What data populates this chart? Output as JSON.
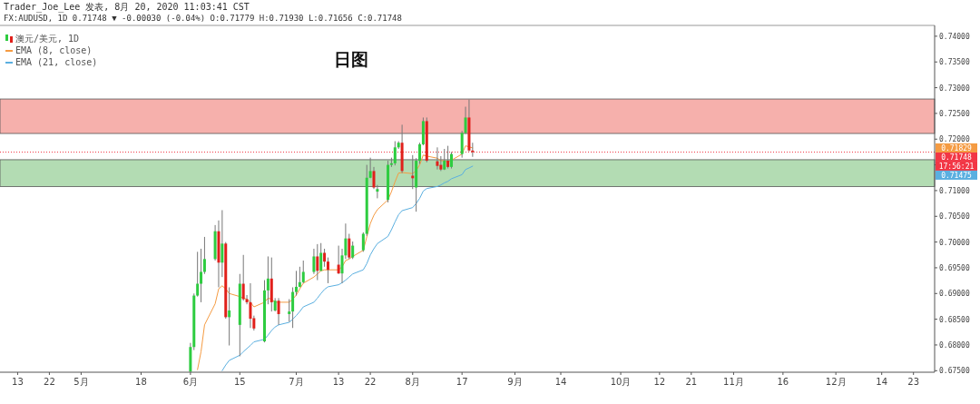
{
  "chart_data": {
    "type": "candlestick",
    "title": "日图",
    "annotations": [
      "Trader_Joe_Lee 发表, 8月 20, 2020 11:03:41 CST",
      "FX:AUDUSD, 1D 0.71748 ▼ -0.00030 (-0.04%) O:0.71779 H:0.71930 L:0.71656 C:0.71748",
      "17:56:21",
      "0.71829",
      "0.71475"
    ],
    "x": [
      "2020-06-01",
      "2020-06-02",
      "2020-06-03",
      "2020-06-04",
      "2020-06-05",
      "2020-06-08",
      "2020-06-09",
      "2020-06-10",
      "2020-06-11",
      "2020-06-12",
      "2020-06-15",
      "2020-06-16",
      "2020-06-17",
      "2020-06-18",
      "2020-06-19",
      "2020-06-22",
      "2020-06-23",
      "2020-06-24",
      "2020-06-25",
      "2020-06-26",
      "2020-06-29",
      "2020-06-30",
      "2020-07-01",
      "2020-07-02",
      "2020-07-03",
      "2020-07-06",
      "2020-07-07",
      "2020-07-08",
      "2020-07-09",
      "2020-07-10",
      "2020-07-13",
      "2020-07-14",
      "2020-07-15",
      "2020-07-16",
      "2020-07-17",
      "2020-07-20",
      "2020-07-21",
      "2020-07-22",
      "2020-07-23",
      "2020-07-24",
      "2020-07-27",
      "2020-07-28",
      "2020-07-29",
      "2020-07-30",
      "2020-07-31",
      "2020-08-03",
      "2020-08-04",
      "2020-08-05",
      "2020-08-06",
      "2020-08-07",
      "2020-08-10",
      "2020-08-11",
      "2020-08-12",
      "2020-08-13",
      "2020-08-14",
      "2020-08-17",
      "2020-08-18",
      "2020-08-19",
      "2020-08-20"
    ],
    "series": [
      {
        "name": "澳元/美元, 1D",
        "ohlc": [
          [
            0.6748,
            0.6804,
            0.6748,
            0.6796
          ],
          [
            0.6796,
            0.69,
            0.679,
            0.6896
          ],
          [
            0.6896,
            0.6981,
            0.6894,
            0.6919
          ],
          [
            0.6919,
            0.6987,
            0.6883,
            0.6942
          ],
          [
            0.6942,
            0.701,
            0.6938,
            0.6967
          ],
          [
            0.6967,
            0.7033,
            0.6964,
            0.7021
          ],
          [
            0.7021,
            0.7042,
            0.6912,
            0.696
          ],
          [
            0.696,
            0.7062,
            0.6932,
            0.6997
          ],
          [
            0.6997,
            0.7,
            0.6851,
            0.6854
          ],
          [
            0.6854,
            0.6912,
            0.6799,
            0.6867
          ],
          [
            0.6839,
            0.6938,
            0.6778,
            0.6919
          ],
          [
            0.6919,
            0.6975,
            0.6886,
            0.6889
          ],
          [
            0.6889,
            0.6897,
            0.6879,
            0.6883
          ],
          [
            0.6883,
            0.692,
            0.6833,
            0.6851
          ],
          [
            0.6852,
            0.6857,
            0.6828,
            0.6832
          ],
          [
            0.6807,
            0.6926,
            0.6805,
            0.6906
          ],
          [
            0.6906,
            0.6972,
            0.6879,
            0.6929
          ],
          [
            0.6929,
            0.697,
            0.6865,
            0.6883
          ],
          [
            0.6867,
            0.6891,
            0.6865,
            0.6886
          ],
          [
            0.6886,
            0.6891,
            0.6839,
            0.686
          ],
          [
            0.686,
            0.6889,
            0.6845,
            0.6865
          ],
          [
            0.6865,
            0.6912,
            0.6833,
            0.6903
          ],
          [
            0.6903,
            0.6944,
            0.6896,
            0.6913
          ],
          [
            0.6913,
            0.6952,
            0.6912,
            0.6922
          ],
          [
            0.6922,
            0.6964,
            0.692,
            0.6942
          ],
          [
            0.6942,
            0.6987,
            0.6938,
            0.6972
          ],
          [
            0.6972,
            0.6996,
            0.6926,
            0.6944
          ],
          [
            0.6944,
            0.6998,
            0.6944,
            0.6979
          ],
          [
            0.6979,
            0.6987,
            0.6952,
            0.6962
          ],
          [
            0.6962,
            0.697,
            0.692,
            0.6946
          ],
          [
            0.6956,
            0.6993,
            0.6938,
            0.6939
          ],
          [
            0.6939,
            0.6987,
            0.692,
            0.6974
          ],
          [
            0.6974,
            0.7036,
            0.6967,
            0.7007
          ],
          [
            0.7007,
            0.7016,
            0.6967,
            0.697
          ],
          [
            0.697,
            0.7001,
            0.6967,
            0.6993
          ],
          [
            0.6984,
            0.7019,
            0.6981,
            0.7016
          ],
          [
            0.7016,
            0.715,
            0.7012,
            0.7125
          ],
          [
            0.7125,
            0.7164,
            0.7124,
            0.7138
          ],
          [
            0.7138,
            0.7146,
            0.7103,
            0.7106
          ],
          [
            0.7098,
            0.7111,
            0.7085,
            0.7103
          ],
          [
            0.7082,
            0.7158,
            0.7077,
            0.715
          ],
          [
            0.715,
            0.7164,
            0.7146,
            0.7153
          ],
          [
            0.7153,
            0.7196,
            0.7149,
            0.7184
          ],
          [
            0.7184,
            0.7196,
            0.7181,
            0.7193
          ],
          [
            0.7193,
            0.7228,
            0.7134,
            0.7138
          ],
          [
            0.7129,
            0.7169,
            0.7103,
            0.7124
          ],
          [
            0.7106,
            0.7163,
            0.7059,
            0.7158
          ],
          [
            0.7158,
            0.7193,
            0.7152,
            0.719
          ],
          [
            0.719,
            0.7242,
            0.7188,
            0.7235
          ],
          [
            0.7235,
            0.7242,
            0.7155,
            0.7158
          ],
          [
            0.7157,
            0.7184,
            0.7141,
            0.7148
          ],
          [
            0.715,
            0.7167,
            0.7138,
            0.7141
          ],
          [
            0.7141,
            0.7181,
            0.714,
            0.7158
          ],
          [
            0.7158,
            0.7187,
            0.7143,
            0.7146
          ],
          [
            0.7146,
            0.7175,
            0.7143,
            0.7171
          ],
          [
            0.7171,
            0.7216,
            0.7164,
            0.7212
          ],
          [
            0.7212,
            0.7263,
            0.721,
            0.7242
          ],
          [
            0.7242,
            0.7277,
            0.7176,
            0.7178
          ],
          [
            0.71779,
            0.7193,
            0.71656,
            0.71748
          ]
        ]
      },
      {
        "name": "EMA (8, close)",
        "type": "line",
        "color": "#f59b42",
        "values": [
          null,
          null,
          0.6752,
          0.6787,
          0.6839,
          0.688,
          0.6909,
          0.6915,
          0.6909,
          0.69,
          0.6894,
          0.6891,
          0.6889,
          0.6883,
          0.6874,
          0.6883,
          0.6891,
          0.6889,
          0.6883,
          0.6883,
          0.6883,
          0.6889,
          0.6897,
          0.6909,
          0.692,
          0.6932,
          0.6938,
          0.6944,
          0.6946,
          0.6946,
          0.6946,
          0.6952,
          0.6964,
          0.6967,
          0.6972,
          0.6984,
          0.701,
          0.7036,
          0.7052,
          0.7063,
          0.7082,
          0.7098,
          0.7117,
          0.7134,
          0.7135,
          0.7133,
          0.7139,
          0.715,
          0.7169,
          0.7167,
          0.7163,
          0.7158,
          0.7158,
          0.7155,
          0.7159,
          0.7171,
          0.7187,
          0.7185,
          0.71829
        ]
      },
      {
        "name": "EMA (21, close)",
        "type": "line",
        "color": "#5aafe0",
        "values": [
          null,
          null,
          null,
          null,
          null,
          null,
          null,
          0.675,
          0.6761,
          0.677,
          0.678,
          0.6787,
          0.6793,
          0.6799,
          0.6806,
          0.6811,
          0.6819,
          0.6828,
          0.6835,
          0.6839,
          0.6844,
          0.685,
          0.6857,
          0.6865,
          0.6874,
          0.6883,
          0.6891,
          0.69,
          0.6908,
          0.6913,
          0.6917,
          0.6921,
          0.6926,
          0.6932,
          0.6938,
          0.6946,
          0.6958,
          0.6975,
          0.6987,
          0.6997,
          0.7011,
          0.7024,
          0.7039,
          0.7053,
          0.7061,
          0.7067,
          0.7075,
          0.7085,
          0.7099,
          0.7104,
          0.7108,
          0.7111,
          0.7115,
          0.7118,
          0.7123,
          0.7131,
          0.7141,
          0.7144,
          0.71475
        ]
      }
    ],
    "ref_lines": [
      {
        "axis": "y",
        "value": 0.71748,
        "label": "0.71748",
        "color": "#f23645",
        "line_style": "dotted"
      }
    ],
    "bands": [
      {
        "axis": "y",
        "from": 0.7211,
        "to": 0.7278,
        "color": "#f6b0ac"
      },
      {
        "axis": "y",
        "from": 0.7108,
        "to": 0.716,
        "color": "#b3dcb3"
      }
    ],
    "xlim": [
      "2020-04-08",
      "2020-12-29"
    ],
    "xticks": [
      {
        "value": "2020-04-13",
        "label": "13"
      },
      {
        "value": "2020-04-22",
        "label": "22"
      },
      {
        "value": "2020-05-01",
        "label": "5月"
      },
      {
        "value": "2020-05-18",
        "label": "18"
      },
      {
        "value": "2020-06-01",
        "label": "6月"
      },
      {
        "value": "2020-06-15",
        "label": "15"
      },
      {
        "value": "2020-07-01",
        "label": "7月"
      },
      {
        "value": "2020-07-13",
        "label": "13"
      },
      {
        "value": "2020-07-22",
        "label": "22"
      },
      {
        "value": "2020-08-03",
        "label": "8月"
      },
      {
        "value": "2020-08-17",
        "label": "17"
      },
      {
        "value": "2020-09-01",
        "label": "9月"
      },
      {
        "value": "2020-09-14",
        "label": "14"
      },
      {
        "value": "2020-10-01",
        "label": "10月"
      },
      {
        "value": "2020-10-12",
        "label": "12"
      },
      {
        "value": "2020-10-21",
        "label": "21"
      },
      {
        "value": "2020-11-02",
        "label": "11月"
      },
      {
        "value": "2020-11-16",
        "label": "16"
      },
      {
        "value": "2020-12-01",
        "label": "12月"
      },
      {
        "value": "2020-12-14",
        "label": "14"
      },
      {
        "value": "2020-12-23",
        "label": "23"
      }
    ],
    "ylim": [
      0.6747,
      0.7421
    ],
    "yticks": [
      {
        "value": 0.675,
        "label": "0.67500"
      },
      {
        "value": 0.68,
        "label": "0.68000"
      },
      {
        "value": 0.685,
        "label": "0.68500"
      },
      {
        "value": 0.69,
        "label": "0.69000"
      },
      {
        "value": 0.695,
        "label": "0.69500"
      },
      {
        "value": 0.7,
        "label": "0.70000"
      },
      {
        "value": 0.705,
        "label": "0.70500"
      },
      {
        "value": 0.71,
        "label": "0.71000"
      },
      {
        "value": 0.715,
        "label": null
      },
      {
        "value": 0.72,
        "label": "0.72000"
      },
      {
        "value": 0.725,
        "label": "0.72500"
      },
      {
        "value": 0.73,
        "label": "0.73000"
      },
      {
        "value": 0.735,
        "label": "0.73500"
      },
      {
        "value": 0.74,
        "label": "0.74000"
      }
    ],
    "legend": "top left"
  }
}
